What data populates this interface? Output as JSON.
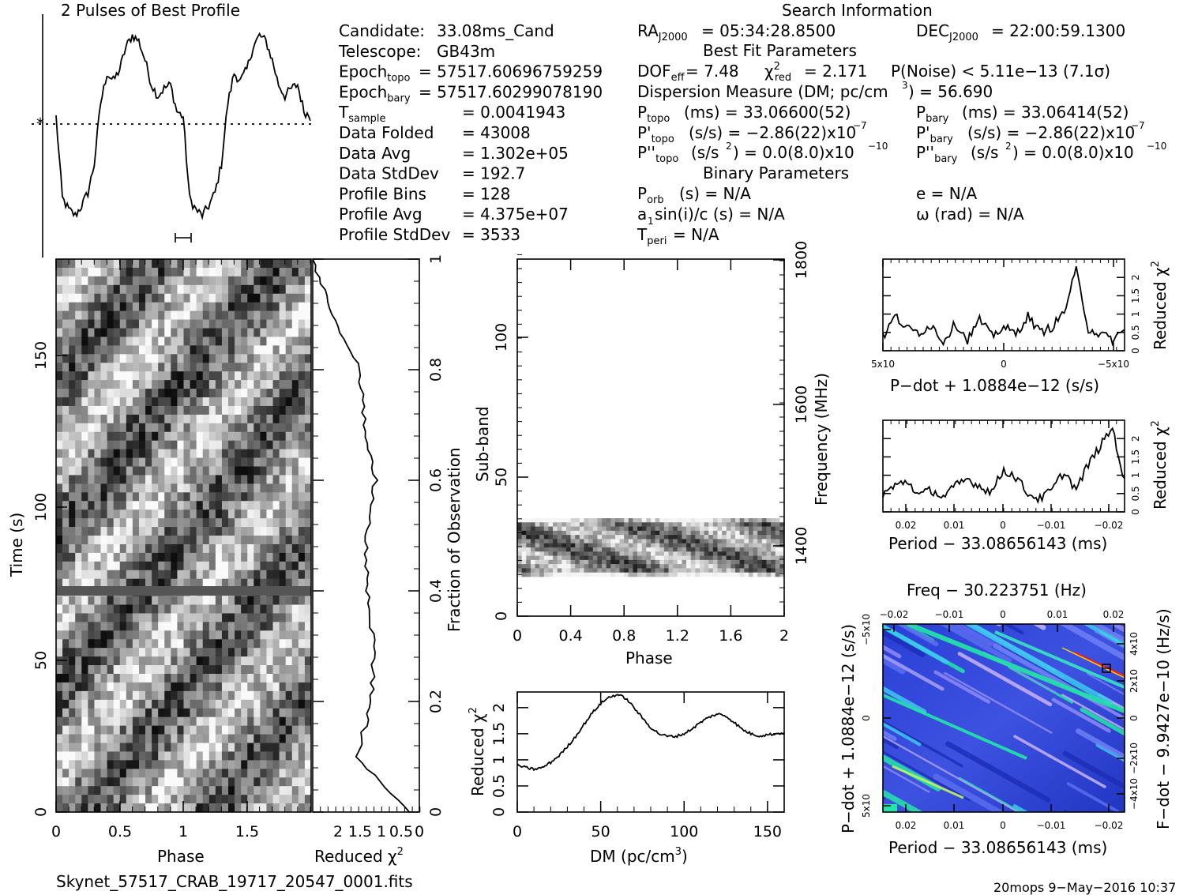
{
  "header": {
    "profile_title": "2 Pulses of Best Profile",
    "search_title": "Search Information",
    "best_fit_title": "Best Fit Parameters",
    "binary_title": "Binary Parameters"
  },
  "info_left": [
    {
      "label": "Candidate:",
      "value": "33.08ms_Cand"
    },
    {
      "label": "Telescope:",
      "value": "GB43m"
    },
    {
      "label": "Epoch",
      "sub": "topo",
      "value": "= 57517.60696759259"
    },
    {
      "label": "Epoch",
      "sub": "bary",
      "value": "= 57517.60299078190"
    },
    {
      "label": "T",
      "sub": "sample",
      "value": "=   0.0041943"
    },
    {
      "label": "Data Folded",
      "value": "=   43008"
    },
    {
      "label": "Data Avg",
      "value": "=   1.302e+05"
    },
    {
      "label": "Data StdDev",
      "value": "=   192.7"
    },
    {
      "label": "Profile Bins",
      "value": "=   128"
    },
    {
      "label": "Profile Avg",
      "value": "=   4.375e+07"
    },
    {
      "label": "Profile StdDev",
      "value": "=   3533"
    }
  ],
  "info_mid": {
    "ra": "= 05:34:28.8500",
    "dec": "= 22:00:59.1300",
    "dof": "= 7.48",
    "chi2": "= 2.171",
    "pnoise": "P(Noise) < 5.11e−13   (7.1σ)",
    "dm_line": "Dispersion Measure (DM; pc/cm",
    "dm_value": ") = 56.690",
    "ptopo": "(ms)  =   33.06600(52)",
    "pbary": "(ms)  =   33.06414(52)",
    "pdtopo": "(s/s) = −2.86(22)x10",
    "pdbary": "(s/s) = −2.86(22)x10",
    "pdexp": "−7",
    "pddtopo": "(s/s",
    "pddval": ") = 0.0(8.0)x10",
    "pddexp": "−10",
    "porb": "(s) = N/A",
    "e": "e = N/A",
    "a1": "a",
    "a1rest": "sin(i)/c (s) = N/A",
    "omega": "ω (rad) = N/A",
    "tperi": "= N/A"
  },
  "footer": {
    "filename": "Skynet_57517_CRAB_19717_20547_0001.fits",
    "stamp": "20mops   9−May−2016 10:37"
  },
  "colors": {
    "plot_line": "#000000",
    "map_low": "#1c34c8",
    "map_mid": "#22e6a8",
    "map_high": "#e62020"
  },
  "chart_data": [
    {
      "type": "line",
      "name_panel": "profile",
      "title": "2 Pulses of Best Profile",
      "xlim": [
        0,
        2
      ],
      "x": [
        0,
        0.05,
        0.1,
        0.15,
        0.2,
        0.25,
        0.3,
        0.35,
        0.4,
        0.45,
        0.5,
        0.55,
        0.6,
        0.65,
        0.7,
        0.75,
        0.8,
        0.85,
        0.9,
        0.95,
        1.0,
        1.05,
        1.1,
        1.15,
        1.2,
        1.25,
        1.3,
        1.35,
        1.4,
        1.45,
        1.5,
        1.55,
        1.6,
        1.65,
        1.7,
        1.75,
        1.8,
        1.85,
        1.9,
        1.95,
        2.0
      ],
      "values": [
        0.55,
        0.12,
        0.06,
        0.03,
        0.08,
        0.15,
        0.3,
        0.62,
        0.78,
        0.74,
        0.8,
        0.92,
        0.98,
        0.95,
        0.85,
        0.72,
        0.66,
        0.7,
        0.72,
        0.58,
        0.55,
        0.12,
        0.06,
        0.03,
        0.08,
        0.15,
        0.3,
        0.62,
        0.78,
        0.74,
        0.8,
        0.92,
        0.98,
        0.95,
        0.85,
        0.72,
        0.66,
        0.7,
        0.72,
        0.58,
        0.55
      ]
    },
    {
      "type": "heatmap",
      "name_panel": "time-phase",
      "xlabel": "Phase",
      "ylabel": "Time (s)",
      "xticks": [
        "0",
        "0.5",
        "1",
        "1.5"
      ],
      "yticks": [
        "0",
        "50",
        "100",
        "150"
      ],
      "xlim": [
        0,
        2
      ],
      "ylim": [
        0,
        180
      ]
    },
    {
      "type": "line",
      "name_panel": "time-chi2",
      "xlabel": "Reduced χ",
      "xticks": [
        "2",
        "1.5",
        "1",
        "0.5",
        "0"
      ],
      "ylabel_right": "Fraction of Observation",
      "yticks_right": [
        "0",
        "0.2",
        "0.4",
        "0.6",
        "0.8",
        "1"
      ],
      "x": [
        0.0,
        0.1,
        0.2,
        0.3,
        0.4,
        0.5,
        0.6,
        0.7,
        0.8,
        0.9,
        1.0
      ],
      "values": [
        0.2,
        1.6,
        1.2,
        1.15,
        1.3,
        1.35,
        1.1,
        1.4,
        1.5,
        2.2,
        2.7
      ]
    },
    {
      "type": "heatmap",
      "name_panel": "subband-phase",
      "xlabel": "Phase",
      "ylabel": "Sub-band",
      "ylabel_right": "Frequency (MHz)",
      "xticks": [
        "0",
        "0.4",
        "0.8",
        "1.2",
        "1.6",
        "2"
      ],
      "yticks": [
        "0",
        "50",
        "100"
      ],
      "yticks_right": [
        "1400",
        "1600",
        "1800"
      ],
      "xlim": [
        0,
        2
      ],
      "ylim": [
        0,
        128
      ],
      "band": [
        15,
        35
      ]
    },
    {
      "type": "line",
      "name_panel": "dm-chi2",
      "xlabel": "DM (pc/cm",
      "ylabel": "Reduced χ",
      "xticks": [
        "0",
        "50",
        "100",
        "150"
      ],
      "yticks": [
        "0",
        "0.5",
        "1",
        "1.5",
        "2"
      ],
      "xlim": [
        0,
        160
      ],
      "ylim": [
        0,
        2.3
      ],
      "x": [
        0,
        5,
        10,
        15,
        20,
        25,
        30,
        35,
        40,
        45,
        50,
        55,
        60,
        65,
        70,
        75,
        80,
        85,
        90,
        95,
        100,
        105,
        110,
        115,
        120,
        125,
        130,
        135,
        140,
        145,
        150,
        155,
        160
      ],
      "values": [
        0.9,
        0.85,
        0.82,
        0.85,
        0.95,
        1.08,
        1.25,
        1.45,
        1.68,
        1.9,
        2.08,
        2.2,
        2.25,
        2.18,
        2.0,
        1.8,
        1.62,
        1.5,
        1.45,
        1.45,
        1.5,
        1.6,
        1.72,
        1.82,
        1.88,
        1.84,
        1.72,
        1.58,
        1.5,
        1.46,
        1.48,
        1.5,
        1.52
      ]
    },
    {
      "type": "line",
      "name_panel": "pdot-chi2",
      "xlabel": "P−dot + 1.0884e−12 (s/s)",
      "ylabel": "Reduced χ",
      "xticks": [
        "5x10",
        "0",
        "−5x10"
      ],
      "yticks": [
        "0",
        "0.5",
        "1",
        "1.5",
        "2"
      ],
      "x": [
        0,
        0.05,
        0.1,
        0.15,
        0.2,
        0.25,
        0.3,
        0.35,
        0.4,
        0.45,
        0.5,
        0.55,
        0.6,
        0.65,
        0.7,
        0.75,
        0.8,
        0.85,
        0.9,
        0.95,
        1.0
      ],
      "values": [
        0.35,
        0.95,
        0.6,
        0.5,
        0.7,
        0.25,
        0.75,
        0.3,
        0.85,
        0.4,
        0.65,
        0.45,
        0.95,
        0.5,
        0.65,
        1.05,
        2.2,
        0.6,
        0.45,
        0.3,
        0.55
      ]
    },
    {
      "type": "line",
      "name_panel": "period-chi2",
      "xlabel": "Period − 33.08656143 (ms)",
      "ylabel": "Reduced χ",
      "xticks": [
        "0.02",
        "0.01",
        "0",
        "−0.01",
        "−0.02"
      ],
      "yticks": [
        "0",
        "0.5",
        "1",
        "1.5",
        "2"
      ],
      "x": [
        0,
        0.05,
        0.1,
        0.15,
        0.2,
        0.25,
        0.3,
        0.35,
        0.4,
        0.45,
        0.5,
        0.55,
        0.6,
        0.65,
        0.7,
        0.75,
        0.8,
        0.85,
        0.9,
        0.95,
        1.0
      ],
      "values": [
        0.5,
        0.7,
        0.85,
        0.45,
        0.6,
        0.4,
        0.7,
        0.9,
        0.7,
        0.55,
        1.15,
        0.95,
        0.5,
        0.35,
        0.6,
        1.1,
        0.6,
        1.3,
        1.8,
        2.3,
        0.8
      ]
    },
    {
      "type": "heatmap",
      "name_panel": "period-pdot",
      "title": "Freq − 30.223751 (Hz)",
      "xlabel": "Period − 33.08656143 (ms)",
      "ylabel": "P−dot + 1.0884e−12 (s/s)",
      "ylabel_right": "F−dot − 9.9427e−10 (Hz/s)",
      "xticks": [
        "0.02",
        "0.01",
        "0",
        "−0.01",
        "−0.02"
      ],
      "xticks_top": [
        "−0.02",
        "−0.01",
        "0",
        "0.01",
        "0.02"
      ],
      "yticks": [
        "5x10",
        "0",
        "−5x10"
      ],
      "yticks_right": [
        "−4x10",
        "−2x10",
        "0",
        "2x10",
        "4x10"
      ]
    }
  ]
}
